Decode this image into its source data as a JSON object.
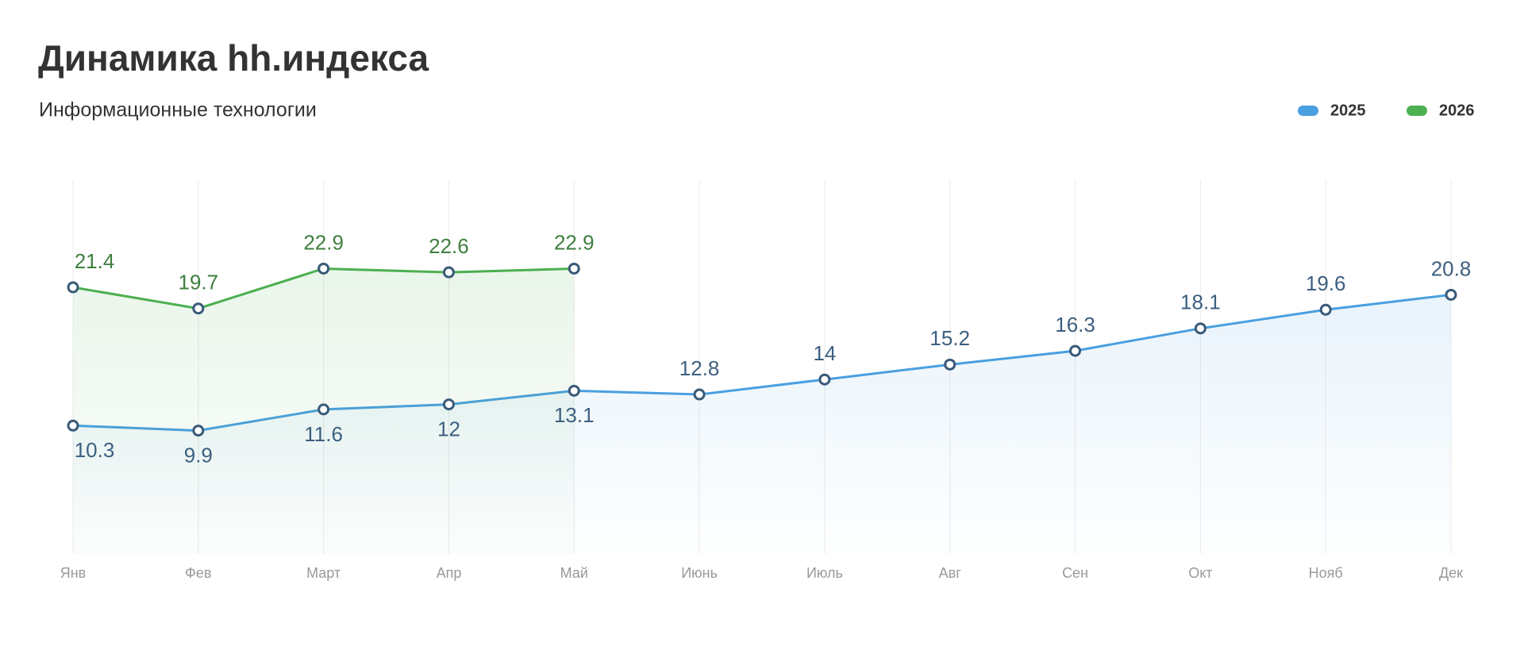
{
  "chart_data": {
    "type": "line",
    "title": "Динамика hh.индекса",
    "subtitle": "Информационные технологии",
    "categories": [
      "Янв",
      "Фев",
      "Март",
      "Апр",
      "Май",
      "Июнь",
      "Июль",
      "Авг",
      "Сен",
      "Окт",
      "Нояб",
      "Дек"
    ],
    "series": [
      {
        "name": "2025",
        "color": "#4a9fe0",
        "values": [
          10.3,
          9.9,
          11.6,
          12,
          13.1,
          12.8,
          14,
          15.2,
          16.3,
          18.1,
          19.6,
          20.8
        ]
      },
      {
        "name": "2026",
        "color": "#4caf50",
        "values": [
          21.4,
          19.7,
          22.9,
          22.6,
          22.9,
          null,
          null,
          null,
          null,
          null,
          null,
          null
        ]
      }
    ],
    "ylim": [
      0,
      30
    ],
    "grid": true,
    "legend": "top-right"
  }
}
